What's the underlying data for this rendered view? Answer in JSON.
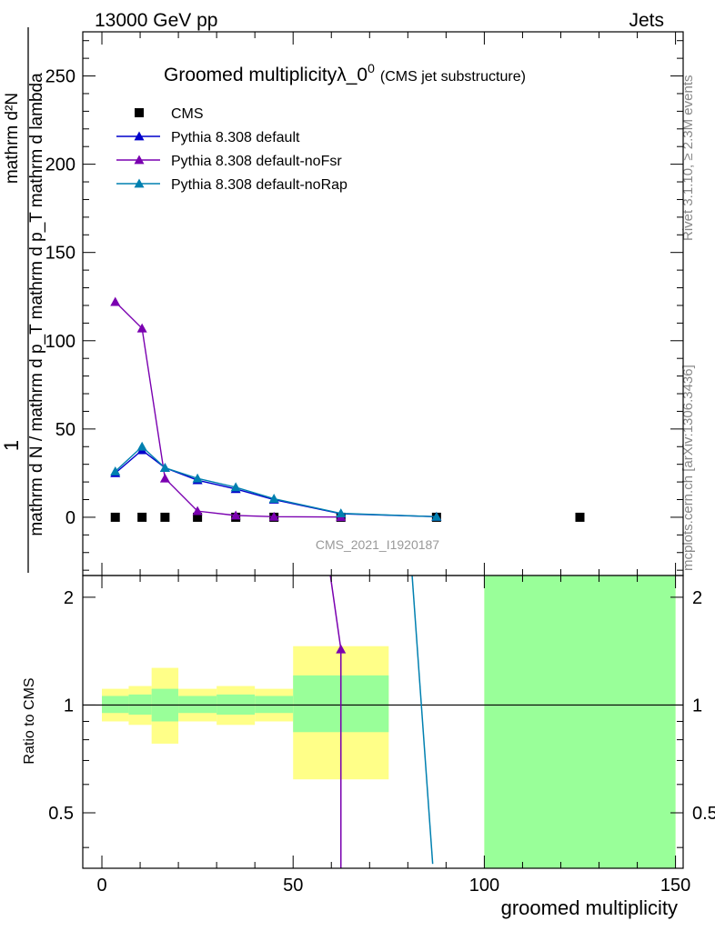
{
  "header": {
    "left": "13000 GeV pp",
    "right": "Jets"
  },
  "side_text": {
    "rivet": "Rivet 3.1.10, ≥ 2.3M events",
    "mcplots": "mcplots.cern.ch [arXiv:1306.3436]"
  },
  "watermark": "CMS_2021_I1920187",
  "colors": {
    "cms": "#000000",
    "default": "#0000cc",
    "noFsr": "#7a00b0",
    "noRap": "#0080b0",
    "band_inner": "#99ff99",
    "band_outer": "#ffff88"
  },
  "chart_data": [
    {
      "type": "line",
      "panel": "main",
      "title": "Groomed multiplicityλ_0",
      "title_sup": "0",
      "title_suffix": "(CMS jet substructure)",
      "ylabel": "mathrm d N / mathrm d p_T mathrm d lambda",
      "ylabel_numerator": "mathrm d²N",
      "ylabel_prefix": "1",
      "ylabel_denominator": "mathrm d N / mathrm d p_T mathrm d p_T mathrm d lambda",
      "xlim": [
        -5,
        152
      ],
      "ylim": [
        -33,
        275
      ],
      "yticks": [
        0,
        50,
        100,
        150,
        200,
        250
      ],
      "legend_position": "top-left",
      "series": [
        {
          "name": "CMS",
          "marker": "square",
          "x": [
            3.5,
            10.5,
            16.5,
            25,
            35,
            45,
            62.5,
            87.5,
            125
          ],
          "y": [
            0,
            0,
            0,
            0,
            0,
            0,
            0,
            0,
            0
          ]
        },
        {
          "name": "Pythia 8.308 default",
          "marker": "triangle",
          "x": [
            3.5,
            10.5,
            16.5,
            25,
            35,
            45,
            62.5,
            87.5
          ],
          "y": [
            25,
            38,
            28,
            21,
            16,
            10,
            2,
            0.3
          ]
        },
        {
          "name": "Pythia 8.308 default-noFsr",
          "marker": "triangle",
          "x": [
            3.5,
            10.5,
            16.5,
            25,
            35,
            45,
            62.5
          ],
          "y": [
            122,
            107,
            22,
            3.5,
            1,
            0.3,
            0.1
          ]
        },
        {
          "name": "Pythia 8.308 default-noRap",
          "marker": "triangle",
          "x": [
            3.5,
            10.5,
            16.5,
            25,
            35,
            45,
            62.5,
            87.5
          ],
          "y": [
            26,
            40,
            28,
            22,
            17,
            10.5,
            2.2,
            0.3
          ]
        }
      ]
    },
    {
      "type": "line",
      "panel": "ratio",
      "ylabel": "Ratio to CMS",
      "xlabel": "groomed multiplicity",
      "xlim": [
        -5,
        152
      ],
      "ylim": [
        0.35,
        2.3
      ],
      "log_y": true,
      "yticks": [
        0.5,
        1,
        2
      ],
      "xticks": [
        0,
        50,
        100,
        150
      ],
      "bands": [
        {
          "x0": 0,
          "x1": 7,
          "inner": [
            0.95,
            1.06
          ],
          "outer": [
            0.9,
            1.11
          ]
        },
        {
          "x0": 7,
          "x1": 13,
          "inner": [
            0.94,
            1.07
          ],
          "outer": [
            0.88,
            1.13
          ]
        },
        {
          "x0": 13,
          "x1": 20,
          "inner": [
            0.9,
            1.11
          ],
          "outer": [
            0.78,
            1.27
          ]
        },
        {
          "x0": 20,
          "x1": 30,
          "inner": [
            0.95,
            1.06
          ],
          "outer": [
            0.9,
            1.11
          ]
        },
        {
          "x0": 30,
          "x1": 40,
          "inner": [
            0.94,
            1.07
          ],
          "outer": [
            0.88,
            1.13
          ]
        },
        {
          "x0": 40,
          "x1": 50,
          "inner": [
            0.95,
            1.06
          ],
          "outer": [
            0.9,
            1.11
          ]
        },
        {
          "x0": 50,
          "x1": 75,
          "inner": [
            0.84,
            1.21
          ],
          "outer": [
            0.62,
            1.46
          ]
        },
        {
          "x0": 100,
          "x1": 150,
          "inner": [
            0.3,
            2.5
          ],
          "outer": [
            0.3,
            2.5
          ]
        }
      ],
      "series": [
        {
          "name": "Pythia 8.308 default-noFsr",
          "x": [
            59.5,
            62.5,
            62.5
          ],
          "y": [
            2.4,
            1.43,
            0.3
          ],
          "marker_index": 1
        },
        {
          "name": "Pythia 8.308 default-noRap",
          "x": [
            81,
            86.5
          ],
          "y": [
            2.4,
            0.36
          ]
        }
      ]
    }
  ]
}
